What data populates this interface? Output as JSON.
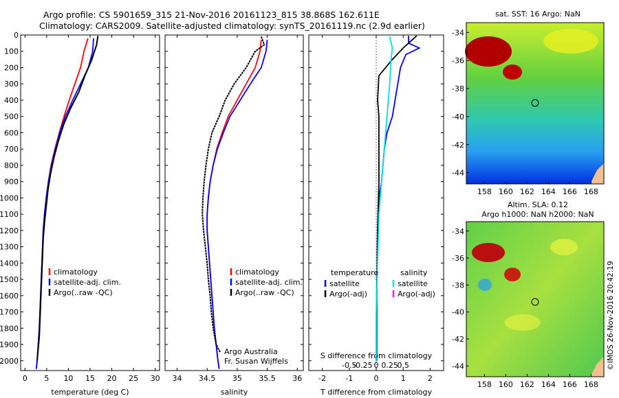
{
  "title_line1": "Argo profile: CS 5901659_315 21-Nov-2016 20161123_815 38.868S 162.611E",
  "title_line2": "Climatology: CARS2009. Satellite-adjusted climatology: synTS_20161119.nc (2.9d earlier)",
  "credit_line1": "Argo Australia",
  "credit_line2": "Fr. Susan Wijffels",
  "side_stamp": "©IMOS 26-Nov-2016 20:42:19",
  "colors": {
    "climatology": "#ff0000",
    "satellite": "#0000ff",
    "argo": "#000000",
    "argo_adj_salinity": "#00e0e0",
    "argo_adj_salinity_legend": "#ff00ff"
  },
  "chart_data": [
    {
      "type": "line",
      "xlabel": "temperature (deg C)",
      "ylabel": "",
      "xlim": [
        -1,
        31
      ],
      "ylim": [
        2060,
        0
      ],
      "xticks": [
        0,
        5,
        10,
        15,
        20,
        25,
        30
      ],
      "yticks": [
        0,
        100,
        200,
        300,
        400,
        500,
        600,
        700,
        800,
        900,
        1000,
        1100,
        1200,
        1300,
        1400,
        1500,
        1600,
        1700,
        1800,
        1900,
        2000
      ],
      "legend": [
        "climatology",
        "satellite-adj. clim.",
        "Argo(..raw -QC)"
      ],
      "series": [
        {
          "name": "climatology",
          "color": "#ff0000",
          "points": [
            [
              14.5,
              20
            ],
            [
              13.6,
              100
            ],
            [
              12.8,
              200
            ],
            [
              11.5,
              300
            ],
            [
              10.2,
              400
            ],
            [
              9,
              500
            ],
            [
              7.9,
              600
            ],
            [
              6.9,
              700
            ],
            [
              6,
              800
            ],
            [
              5.4,
              900
            ],
            [
              4.9,
              1000
            ],
            [
              4.5,
              1100
            ],
            [
              4.2,
              1200
            ],
            [
              3.9,
              1400
            ],
            [
              3.6,
              1600
            ],
            [
              3.3,
              1800
            ],
            [
              2.8,
              2000
            ],
            [
              2.6,
              2050
            ]
          ]
        },
        {
          "name": "satellite-adj. clim.",
          "color": "#0000ff",
          "points": [
            [
              15.8,
              20
            ],
            [
              15.6,
              100
            ],
            [
              14.6,
              200
            ],
            [
              12.8,
              300
            ],
            [
              11,
              400
            ],
            [
              9.3,
              500
            ],
            [
              8,
              600
            ],
            [
              7,
              700
            ],
            [
              6.1,
              800
            ],
            [
              5.4,
              900
            ],
            [
              4.9,
              1000
            ],
            [
              4.5,
              1100
            ],
            [
              4.2,
              1200
            ],
            [
              3.9,
              1400
            ],
            [
              3.6,
              1600
            ],
            [
              3.3,
              1800
            ],
            [
              2.8,
              2000
            ],
            [
              2.6,
              2050
            ]
          ]
        },
        {
          "name": "Argo(..raw -QC)",
          "color": "#000000",
          "points": [
            [
              16.8,
              5
            ],
            [
              16.5,
              60
            ],
            [
              15.4,
              150
            ],
            [
              13.8,
              250
            ],
            [
              12.4,
              350
            ],
            [
              10.5,
              450
            ],
            [
              8.9,
              550
            ],
            [
              7.7,
              650
            ],
            [
              6.7,
              750
            ],
            [
              5.9,
              850
            ],
            [
              5.3,
              950
            ],
            [
              4.9,
              1050
            ],
            [
              4.5,
              1150
            ],
            [
              4.2,
              1250
            ],
            [
              3.9,
              1450
            ],
            [
              3.6,
              1650
            ],
            [
              3.3,
              1850
            ],
            [
              2.8,
              2000
            ]
          ]
        }
      ]
    },
    {
      "type": "line",
      "xlabel": "salinity",
      "xlim": [
        33.8,
        36.1
      ],
      "ylim": [
        2060,
        0
      ],
      "xticks": [
        34,
        34.5,
        35,
        35.5,
        36
      ],
      "legend": [
        "climatology",
        "satellite-adj. clim.",
        "Argo(..raw -QC)"
      ],
      "series": [
        {
          "name": "climatology",
          "color": "#ff0000",
          "points": [
            [
              35.4,
              30
            ],
            [
              35.38,
              100
            ],
            [
              35.3,
              200
            ],
            [
              35.15,
              300
            ],
            [
              35.0,
              400
            ],
            [
              34.85,
              500
            ],
            [
              34.75,
              600
            ],
            [
              34.66,
              700
            ],
            [
              34.6,
              800
            ],
            [
              34.55,
              900
            ],
            [
              34.52,
              1000
            ],
            [
              34.5,
              1100
            ],
            [
              34.5,
              1200
            ],
            [
              34.52,
              1300
            ],
            [
              34.54,
              1400
            ],
            [
              34.56,
              1500
            ],
            [
              34.58,
              1600
            ],
            [
              34.6,
              1700
            ],
            [
              34.62,
              1800
            ],
            [
              34.65,
              1900
            ],
            [
              34.68,
              2000
            ],
            [
              34.7,
              2050
            ]
          ]
        },
        {
          "name": "satellite-adj. clim.",
          "color": "#0000ff",
          "points": [
            [
              35.5,
              30
            ],
            [
              35.48,
              100
            ],
            [
              35.4,
              200
            ],
            [
              35.22,
              300
            ],
            [
              35.05,
              400
            ],
            [
              34.88,
              500
            ],
            [
              34.77,
              600
            ],
            [
              34.67,
              700
            ],
            [
              34.6,
              800
            ],
            [
              34.55,
              900
            ],
            [
              34.52,
              1000
            ],
            [
              34.5,
              1100
            ],
            [
              34.5,
              1200
            ],
            [
              34.52,
              1300
            ],
            [
              34.54,
              1400
            ],
            [
              34.56,
              1500
            ],
            [
              34.58,
              1600
            ],
            [
              34.6,
              1700
            ],
            [
              34.62,
              1800
            ],
            [
              34.65,
              1900
            ],
            [
              34.68,
              2000
            ],
            [
              34.7,
              2050
            ]
          ]
        },
        {
          "name": "Argo(..raw -QC)",
          "color": "#000000",
          "points": [
            [
              35.4,
              10
            ],
            [
              35.45,
              60
            ],
            [
              35.3,
              100
            ],
            [
              35.15,
              200
            ],
            [
              34.95,
              300
            ],
            [
              34.8,
              400
            ],
            [
              34.7,
              500
            ],
            [
              34.58,
              600
            ],
            [
              34.52,
              700
            ],
            [
              34.48,
              800
            ],
            [
              34.45,
              900
            ],
            [
              34.43,
              1000
            ],
            [
              34.42,
              1100
            ],
            [
              34.44,
              1200
            ],
            [
              34.47,
              1300
            ],
            [
              34.5,
              1400
            ],
            [
              34.52,
              1500
            ],
            [
              34.55,
              1600
            ],
            [
              34.57,
              1700
            ],
            [
              34.6,
              1800
            ],
            [
              34.65,
              1900
            ],
            [
              34.72,
              1950
            ]
          ]
        }
      ]
    },
    {
      "type": "line",
      "xlabel": "T difference from climatology",
      "xlabel_top": "S difference from climatology",
      "xlim": [
        -2.5,
        2.5
      ],
      "ylim": [
        2060,
        0
      ],
      "xticks": [
        -2,
        -1,
        0,
        1,
        2
      ],
      "xticks_top": [
        "-0.5",
        "-0.25",
        "0",
        "0.25",
        "0.5"
      ],
      "legend_groups": [
        {
          "header": "temperature",
          "items": [
            "satellite",
            "Argo(-adj)"
          ]
        },
        {
          "header": "salinity",
          "items": [
            "satellite",
            "Argo(-adj)"
          ]
        }
      ],
      "series": [
        {
          "name": "T satellite",
          "color": "#0000ff",
          "points": [
            [
              1.2,
              5
            ],
            [
              1.2,
              50
            ],
            [
              1.6,
              80
            ],
            [
              1.1,
              120
            ],
            [
              0.9,
              200
            ],
            [
              0.8,
              300
            ],
            [
              0.7,
              400
            ],
            [
              0.6,
              500
            ],
            [
              0.4,
              600
            ],
            [
              0.3,
              700
            ],
            [
              0.25,
              800
            ],
            [
              0.2,
              900
            ],
            [
              0.1,
              1000
            ],
            [
              0.05,
              1200
            ],
            [
              0.02,
              1600
            ],
            [
              0.02,
              2000
            ]
          ]
        },
        {
          "name": "T Argo(-adj)",
          "color": "#000000",
          "points": [
            [
              1.5,
              5
            ],
            [
              1.0,
              80
            ],
            [
              0.6,
              150
            ],
            [
              0.1,
              250
            ],
            [
              0.05,
              400
            ],
            [
              0.1,
              500
            ],
            [
              0.1,
              700
            ],
            [
              0.1,
              900
            ],
            [
              0.05,
              1200
            ],
            [
              0.02,
              1600
            ],
            [
              0.0,
              2000
            ]
          ]
        },
        {
          "name": "S satellite",
          "color": "#00e0e0",
          "points": [
            [
              0.5,
              10
            ],
            [
              0.6,
              80
            ],
            [
              0.55,
              150
            ],
            [
              0.5,
              300
            ],
            [
              0.4,
              500
            ],
            [
              0.3,
              700
            ],
            [
              0.2,
              900
            ],
            [
              0.1,
              1100
            ],
            [
              0.05,
              1400
            ],
            [
              0.0,
              1700
            ],
            [
              0.0,
              2000
            ]
          ]
        }
      ]
    },
    {
      "type": "heatmap",
      "title": "sat. SST: 16 Argo: NaN",
      "xticks": [
        158,
        160,
        162,
        164,
        166,
        168
      ],
      "yticks": [
        -34,
        -36,
        -38,
        -40,
        -42,
        -44
      ],
      "marker": [
        162.611,
        -38.868
      ]
    },
    {
      "type": "heatmap",
      "title_line1": "Altim. SLA: 0.12",
      "title_line2": "Argo h1000: NaN h2000: NaN",
      "xticks": [
        158,
        160,
        162,
        164,
        166,
        168
      ],
      "yticks": [
        -34,
        -36,
        -38,
        -40,
        -42,
        -44
      ],
      "marker": [
        162.611,
        -38.868
      ]
    }
  ]
}
